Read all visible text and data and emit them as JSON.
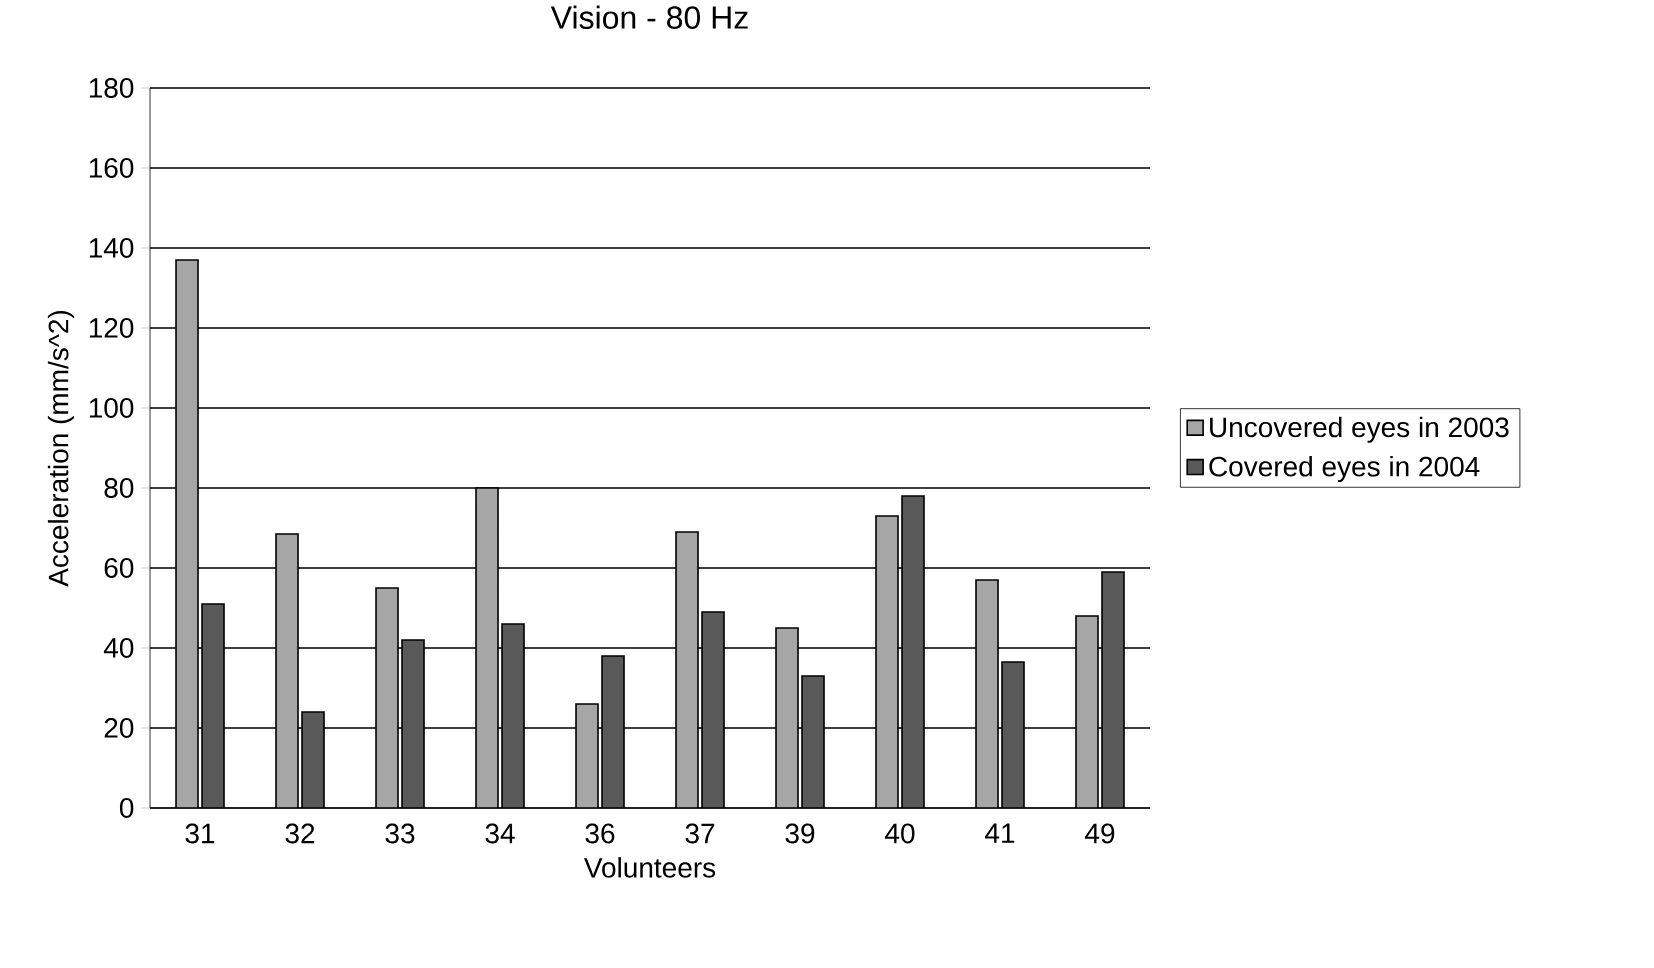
{
  "chart_data": {
    "type": "bar",
    "title": "Vision - 80 Hz",
    "xlabel": "Volunteers",
    "ylabel": "Acceleration (mm/s^2)",
    "categories": [
      "31",
      "32",
      "33",
      "34",
      "36",
      "37",
      "39",
      "40",
      "41",
      "49"
    ],
    "series": [
      {
        "name": "Uncovered eyes in 2003",
        "color": "#a6a6a6",
        "values": [
          137,
          68.5,
          55,
          80,
          26,
          69,
          45,
          73,
          57,
          48
        ]
      },
      {
        "name": "Covered eyes in 2004",
        "color": "#595959",
        "values": [
          51,
          24,
          42,
          46,
          38,
          49,
          33,
          78,
          36.5,
          59
        ]
      }
    ],
    "ylim": [
      0,
      180
    ],
    "yticks": [
      0,
      20,
      40,
      60,
      80,
      100,
      120,
      140,
      160,
      180
    ],
    "grid": "y",
    "legend": "right"
  }
}
